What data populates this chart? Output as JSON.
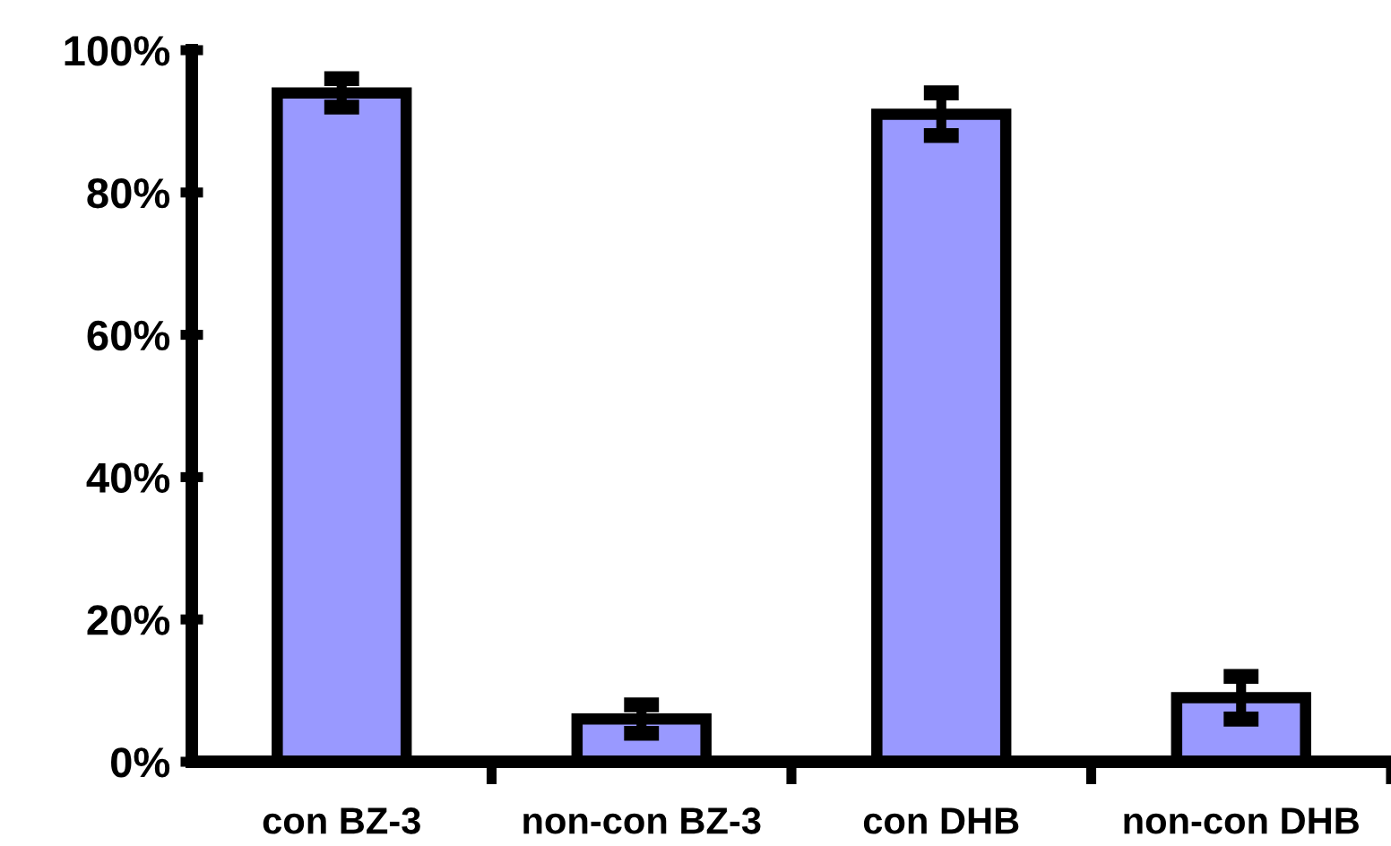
{
  "chart_data": {
    "type": "bar",
    "categories": [
      "con BZ-3",
      "non-con BZ-3",
      "con DHB",
      "non-con DHB"
    ],
    "values": [
      94,
      6,
      91,
      9
    ],
    "errors": [
      2,
      2,
      3,
      3
    ],
    "color": "#9999ff",
    "ylim": [
      0,
      100
    ],
    "yticks": [
      {
        "value": 0,
        "label": "0%"
      },
      {
        "value": 20,
        "label": "20%"
      },
      {
        "value": 40,
        "label": "40%"
      },
      {
        "value": 60,
        "label": "60%"
      },
      {
        "value": 80,
        "label": "80%"
      },
      {
        "value": 100,
        "label": "100%"
      }
    ],
    "grid": false,
    "legend": false
  }
}
